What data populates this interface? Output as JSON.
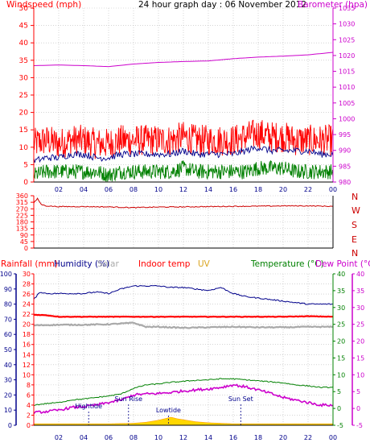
{
  "header": {
    "left_label": "Windspeed (mph)",
    "title": "24 hour graph day : 06 November 2012",
    "right_label": "Barometer (hpa)"
  },
  "colors": {
    "windspeed": "#ff0000",
    "gust": "#008000",
    "avg_wind": "#00008b",
    "barometer": "#cc00cc",
    "direction": "#cc0000",
    "humidity": "#00008b",
    "indoor_temp": "#ff0000",
    "solar": "#a9a9a9",
    "temperature": "#008000",
    "dew_point": "#cc00cc",
    "rainfall": "#ffd700",
    "grid": "#bbbbbb"
  },
  "bottom_labels": {
    "rainfall": "Rainfall (mm)",
    "humidity": "Humidity (%)",
    "solar": "Solar",
    "indoor_temp": "Indoor temp",
    "uv": "UV",
    "temperature": "Temperature (°C)",
    "dew_point": "Dew Point (°C)"
  },
  "x_ticks": [
    "02",
    "04",
    "06",
    "08",
    "10",
    "12",
    "14",
    "16",
    "18",
    "20",
    "22",
    "00"
  ],
  "tide_events": [
    {
      "label": "Hightide",
      "hour": 4.4
    },
    {
      "label": "Sun Rise",
      "hour": 7.6
    },
    {
      "label": "Lowtide",
      "hour": 10.8
    },
    {
      "label": "Sun Set",
      "hour": 16.6
    }
  ],
  "chart_data": [
    {
      "type": "line",
      "title": "24 hour graph day : 06 November 2012",
      "x_range_hours": [
        0,
        24
      ],
      "left_axis": {
        "label": "Windspeed (mph)",
        "ticks": [
          0,
          5,
          10,
          15,
          20,
          25,
          30,
          35,
          40,
          45,
          50
        ],
        "ylim": [
          0,
          50
        ]
      },
      "right_axis": {
        "label": "Barometer (hpa)",
        "ticks": [
          980,
          985,
          990,
          995,
          1000,
          1005,
          1010,
          1015,
          1020,
          1025,
          1030,
          1035
        ],
        "ylim": [
          980,
          1035
        ]
      },
      "grid": true,
      "series": [
        {
          "key": "windspeed",
          "axis": "left",
          "x": [
            0,
            1,
            2,
            3,
            4,
            5,
            6,
            7,
            8,
            9,
            10,
            11,
            12,
            13,
            14,
            15,
            16,
            17,
            18,
            19,
            20,
            21,
            22,
            23,
            24
          ],
          "y": [
            11,
            12,
            11,
            12,
            12,
            11,
            11,
            12,
            12,
            12,
            12,
            12,
            13,
            12,
            12,
            12,
            12,
            13,
            14,
            13,
            13,
            12,
            12,
            12,
            12
          ]
        },
        {
          "key": "avg_wind",
          "axis": "left",
          "x": [
            0,
            1,
            2,
            3,
            4,
            5,
            6,
            7,
            8,
            9,
            10,
            11,
            12,
            13,
            14,
            15,
            16,
            17,
            18,
            19,
            20,
            21,
            22,
            23,
            24
          ],
          "y": [
            6,
            7,
            7,
            8,
            8,
            7,
            7,
            8,
            8,
            8,
            8,
            8,
            9,
            8,
            8,
            8,
            8,
            9,
            10,
            9,
            9,
            9,
            9,
            8,
            8
          ]
        },
        {
          "key": "gust",
          "axis": "left",
          "x": [
            0,
            1,
            2,
            3,
            4,
            5,
            6,
            7,
            8,
            9,
            10,
            11,
            12,
            13,
            14,
            15,
            16,
            17,
            18,
            19,
            20,
            21,
            22,
            23,
            24
          ],
          "y": [
            2,
            3,
            3,
            3,
            3,
            3,
            2,
            3,
            3,
            3,
            3,
            3,
            4,
            3,
            3,
            3,
            3,
            3,
            4,
            4,
            4,
            3,
            3,
            3,
            3
          ]
        },
        {
          "key": "barometer",
          "axis": "right",
          "x": [
            0,
            2,
            4,
            6,
            8,
            10,
            12,
            14,
            16,
            18,
            20,
            22,
            24
          ],
          "y": [
            1016.8,
            1017.0,
            1016.8,
            1016.5,
            1017.3,
            1017.8,
            1018.1,
            1018.3,
            1019.0,
            1019.5,
            1019.8,
            1020.2,
            1021.0
          ]
        }
      ]
    },
    {
      "type": "line",
      "x_range_hours": [
        0,
        24
      ],
      "left_axis": {
        "ticks": [
          0,
          45,
          90,
          135,
          180,
          225,
          270,
          315,
          360
        ],
        "ylim": [
          0,
          360
        ]
      },
      "right_axis": {
        "ticks": [
          "N",
          "W",
          "S",
          "E",
          "N"
        ]
      },
      "series": [
        {
          "key": "direction",
          "x": [
            0,
            0.3,
            0.6,
            1,
            2,
            4,
            6,
            8,
            10,
            12,
            14,
            16,
            18,
            20,
            22,
            24
          ],
          "y": [
            310,
            340,
            300,
            290,
            285,
            285,
            283,
            278,
            282,
            283,
            285,
            287,
            288,
            290,
            290,
            287
          ]
        }
      ]
    },
    {
      "type": "line",
      "x_range_hours": [
        0,
        24
      ],
      "humidity_axis": {
        "ticks": [
          0,
          10,
          20,
          30,
          40,
          50,
          60,
          70,
          80,
          90,
          100
        ],
        "ylim": [
          0,
          100
        ]
      },
      "temp_axis_left": {
        "ticks": [
          0,
          2,
          4,
          6,
          8,
          10,
          12,
          14,
          16,
          18,
          20,
          22,
          24,
          26,
          28,
          30
        ],
        "ylim": [
          0,
          30
        ]
      },
      "temp_axis_right": {
        "ticks": [
          -5,
          0,
          5,
          10,
          15,
          20,
          25,
          30,
          35,
          40
        ],
        "ylim": [
          -5,
          40
        ]
      },
      "series": [
        {
          "key": "humidity",
          "x": [
            0,
            0.5,
            1,
            2,
            3,
            4,
            5,
            6,
            7,
            8,
            9,
            10,
            11,
            12,
            13,
            14,
            15,
            16,
            17,
            18,
            19,
            20,
            21,
            22,
            23,
            24
          ],
          "y": [
            83,
            88,
            87,
            87,
            87,
            87,
            88,
            87,
            90,
            92,
            92,
            92,
            91,
            91,
            90,
            89,
            91,
            87,
            85,
            84,
            83,
            82,
            81,
            80,
            80,
            80
          ]
        },
        {
          "key": "indoor_temp",
          "x": [
            0,
            1,
            2,
            4,
            6,
            8,
            10,
            12,
            14,
            16,
            18,
            20,
            22,
            24
          ],
          "y": [
            21.9,
            21.8,
            21.5,
            21.5,
            21.5,
            21.5,
            21.5,
            21.5,
            21.5,
            21.5,
            21.5,
            21.5,
            21.6,
            21.5
          ]
        },
        {
          "key": "solar",
          "x": [
            0,
            2,
            4,
            6,
            8,
            9,
            10,
            12,
            14,
            16,
            18,
            20,
            22,
            24
          ],
          "y": [
            19.8,
            19.9,
            19.9,
            20.0,
            20.3,
            19.5,
            19.5,
            19.3,
            19.4,
            19.5,
            19.4,
            19.4,
            19.5,
            19.5
          ]
        },
        {
          "key": "temperature",
          "x": [
            0,
            1,
            2,
            3,
            4,
            5,
            6,
            7,
            8,
            9,
            10,
            11,
            12,
            13,
            14,
            15,
            16,
            17,
            18,
            19,
            20,
            21,
            22,
            23,
            24
          ],
          "y": [
            4.0,
            4.3,
            4.5,
            5.0,
            5.2,
            5.5,
            5.8,
            6.2,
            7.3,
            8.0,
            8.2,
            8.5,
            8.7,
            8.9,
            9.0,
            9.2,
            9.2,
            9.0,
            8.8,
            8.6,
            8.4,
            8.0,
            7.8,
            7.5,
            7.5
          ]
        },
        {
          "key": "dew_point",
          "x": [
            0,
            1,
            2,
            3,
            4,
            5,
            6,
            7,
            8,
            9,
            10,
            11,
            12,
            13,
            14,
            15,
            16,
            17,
            18,
            19,
            20,
            21,
            22,
            23,
            24
          ],
          "y": [
            2.5,
            2.7,
            3.0,
            3.5,
            3.7,
            4.0,
            4.5,
            5.0,
            6.0,
            6.2,
            6.3,
            6.5,
            6.8,
            7.0,
            7.2,
            7.5,
            8.0,
            7.6,
            7.0,
            6.3,
            5.5,
            5.0,
            4.5,
            4.0,
            4.0
          ]
        },
        {
          "key": "rainfall",
          "x": [
            0,
            6,
            8,
            9,
            10,
            10.5,
            11,
            11.5,
            12,
            13,
            14,
            15,
            16,
            17,
            18,
            20,
            22,
            24
          ],
          "y": [
            0.3,
            0.3,
            0.4,
            0.6,
            1.0,
            1.3,
            1.6,
            1.3,
            1.1,
            0.7,
            0.5,
            0.4,
            0.3,
            0.3,
            0.3,
            0.3,
            0.3,
            0.3
          ]
        }
      ]
    }
  ]
}
